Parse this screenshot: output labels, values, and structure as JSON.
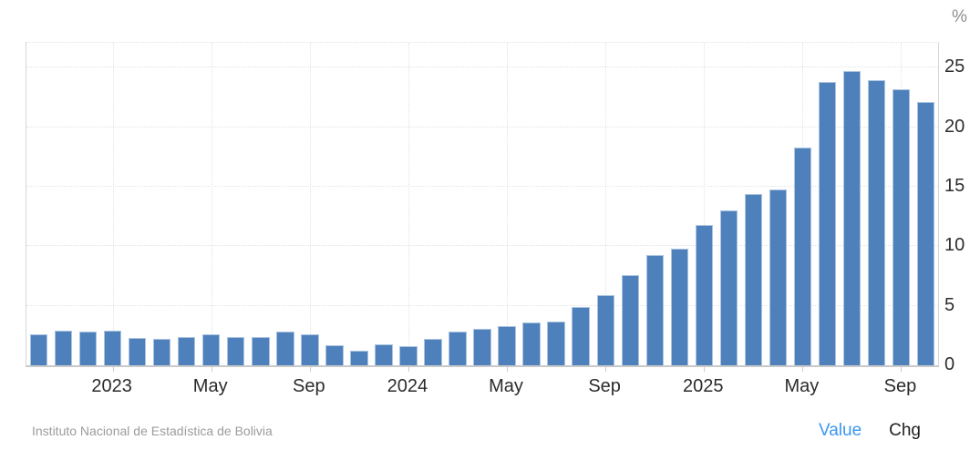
{
  "chart": {
    "unit_label": "%",
    "bar_color": "#4e80bc",
    "axis_text_color": "#2d2d2d"
  },
  "chart_data": {
    "type": "bar",
    "title": "",
    "xlabel": "",
    "ylabel": "%",
    "x": [
      "Oct 2022",
      "Nov 2022",
      "Dec 2022",
      "Jan 2023",
      "Feb 2023",
      "Mar 2023",
      "Apr 2023",
      "May 2023",
      "Jun 2023",
      "Jul 2023",
      "Aug 2023",
      "Sep 2023",
      "Oct 2023",
      "Nov 2023",
      "Dec 2023",
      "Jan 2024",
      "Feb 2024",
      "Mar 2024",
      "Apr 2024",
      "May 2024",
      "Jun 2024",
      "Jul 2024",
      "Aug 2024",
      "Sep 2024",
      "Oct 2024",
      "Nov 2024",
      "Dec 2024",
      "Jan 2025",
      "Feb 2025",
      "Mar 2025",
      "Apr 2025",
      "May 2025",
      "Jun 2025",
      "Jul 2025",
      "Aug 2025",
      "Sep 2025",
      "Oct 2025"
    ],
    "values": [
      2.6,
      2.9,
      2.8,
      2.9,
      2.3,
      2.2,
      2.4,
      2.6,
      2.4,
      2.4,
      2.8,
      2.6,
      1.7,
      1.2,
      1.8,
      1.6,
      2.2,
      2.8,
      3.1,
      3.3,
      3.6,
      3.7,
      4.9,
      5.9,
      7.6,
      9.3,
      9.8,
      11.8,
      13.0,
      14.4,
      14.8,
      18.3,
      23.8,
      24.7,
      24.0,
      23.2,
      22.1
    ],
    "x_tick_labels": [
      "2023",
      "May",
      "Sep",
      "2024",
      "May",
      "Sep",
      "2025",
      "May",
      "Sep"
    ],
    "y_ticks": [
      0,
      5,
      10,
      15,
      20,
      25
    ],
    "ylim": [
      0,
      27.1
    ],
    "unit": "%",
    "grid": true,
    "legend_position": "none"
  },
  "footer": {
    "source": "Instituto Nacional de Estadística de Bolivia",
    "value_label": "Value",
    "chg_label": "Chg"
  }
}
